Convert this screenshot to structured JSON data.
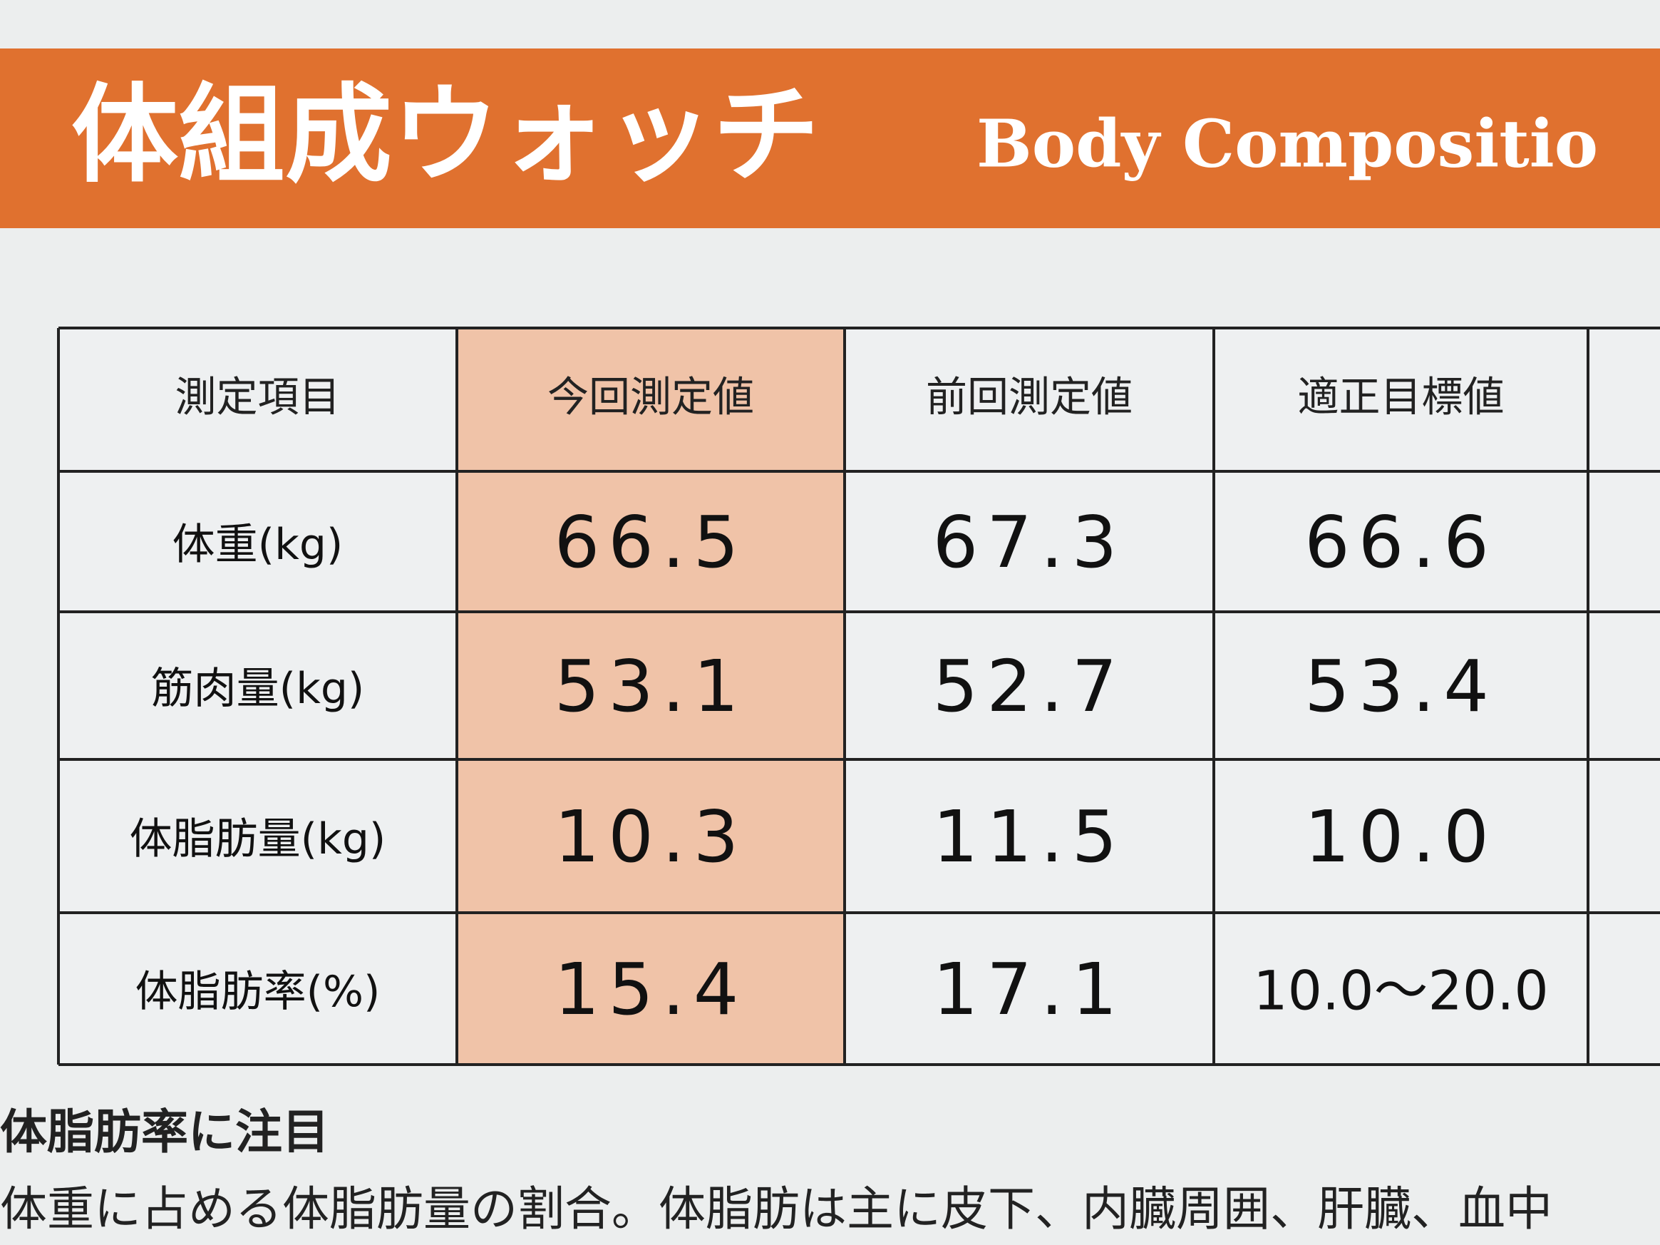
{
  "header": {
    "title": "体組成ウォッチ",
    "subtitle": "Body Compositio"
  },
  "table": {
    "columns": [
      "測定項目",
      "今回測定値",
      "前回測定値",
      "適正目標値"
    ],
    "rows": [
      [
        "体重(kg)",
        "66.5",
        "67.3",
        "66.6"
      ],
      [
        "筋肉量(kg)",
        "53.1",
        "52.7",
        "53.4"
      ],
      [
        "体脂肪量(kg)",
        "10.3",
        "11.5",
        "10.0"
      ],
      [
        "体脂肪率(%)",
        "15.4",
        "17.1",
        "10.0〜20.0"
      ]
    ]
  },
  "section": {
    "heading": "体脂肪率に注目",
    "text": "体重に占める体脂肪量の割合。体脂肪は主に皮下、内臓周囲、肝臓、血中"
  }
}
